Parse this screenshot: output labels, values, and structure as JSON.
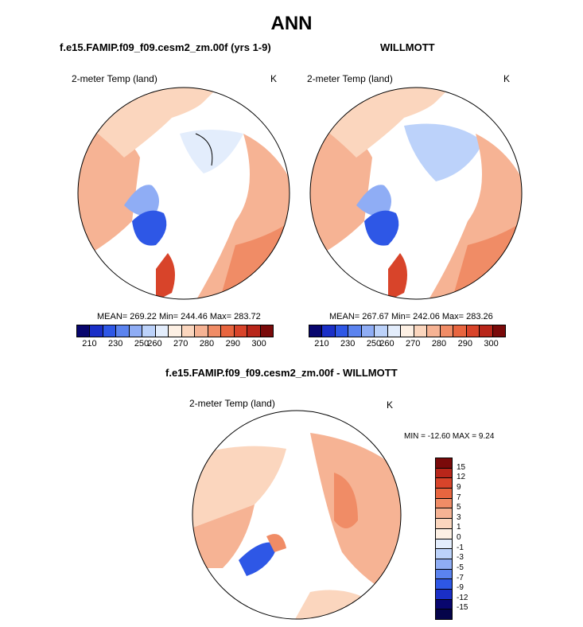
{
  "chart_data": [
    {
      "type": "heatmap",
      "projection": "north-polar-stereographic",
      "title": "ANN",
      "panel_title": "f.e15.FAMIP.f09_f09.cesm2_zm.00f (yrs 1-9)",
      "variable": "2-meter Temp (land)",
      "units": "K",
      "stats": {
        "mean": 269.22,
        "min": 244.46,
        "max": 283.72
      },
      "stats_text": "MEAN= 269.22  Min= 244.46  Max= 283.72",
      "colorbar": {
        "levels": [
          "210",
          "230",
          "250",
          "260",
          "270",
          "280",
          "290",
          "300"
        ]
      }
    },
    {
      "type": "heatmap",
      "projection": "north-polar-stereographic",
      "panel_title": "WILLMOTT",
      "variable": "2-meter Temp (land)",
      "units": "K",
      "stats": {
        "mean": 267.67,
        "min": 242.06,
        "max": 283.26
      },
      "stats_text": "MEAN= 267.67  Min= 242.06  Max= 283.26",
      "colorbar": {
        "levels": [
          "210",
          "230",
          "250",
          "260",
          "270",
          "280",
          "290",
          "300"
        ]
      }
    },
    {
      "type": "heatmap",
      "projection": "north-polar-stereographic",
      "panel_title": "f.e15.FAMIP.f09_f09.cesm2_zm.00f - WILLMOTT",
      "variable": "2-meter Temp (land)",
      "units": "K",
      "stats": {
        "min": -12.6,
        "max": 9.24
      },
      "stats_text": "MIN = -12.60 MAX =   9.24",
      "colorbar": {
        "levels": [
          "15",
          "12",
          "9",
          "7",
          "5",
          "3",
          "1",
          "0",
          "-1",
          "-3",
          "-5",
          "-7",
          "-9",
          "-12",
          "-15"
        ]
      }
    }
  ],
  "colors": {
    "abs_scale": [
      "#08066e",
      "#1a2fc7",
      "#2e57e6",
      "#5b83ef",
      "#8fadf5",
      "#bcd2fa",
      "#e3edfc",
      "#fdf0e4",
      "#fbd6be",
      "#f6b394",
      "#f08c66",
      "#e8653f",
      "#d8442a",
      "#b8261a",
      "#7a0a0a"
    ],
    "diff_scale": [
      "#7a0a0a",
      "#b8261a",
      "#d8442a",
      "#e8653f",
      "#f08c66",
      "#f6b394",
      "#fbd6be",
      "#fdf0e4",
      "#e3edfc",
      "#bcd2fa",
      "#8fadf5",
      "#5b83ef",
      "#2e57e6",
      "#1a2fc7",
      "#08066e",
      "#05044a"
    ]
  }
}
